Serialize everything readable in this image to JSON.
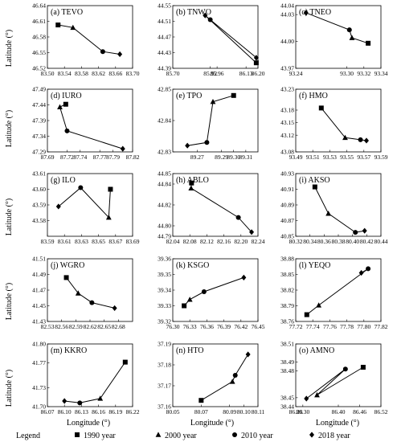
{
  "figure": {
    "ylabel": "Latitude (°)",
    "xlabel": "Longitude (°)"
  },
  "legend": {
    "title": "Legend",
    "items": [
      {
        "label": "1990 year",
        "marker": "square"
      },
      {
        "label": "2000 year",
        "marker": "triangle"
      },
      {
        "label": "2010 year",
        "marker": "circle"
      },
      {
        "label": "2018 year",
        "marker": "diamond"
      }
    ]
  },
  "chart_data": [
    {
      "type": "line",
      "title": "(a) TEVO",
      "xlim": [
        83.5,
        83.7
      ],
      "xticks": [
        "83.50",
        "83.54",
        "83.58",
        "83.62",
        "83.66",
        "83.70"
      ],
      "ylim": [
        46.52,
        46.64
      ],
      "yticks": [
        "46.52",
        "46.55",
        "46.58",
        "46.61",
        "46.64"
      ],
      "points": [
        [
          83.525,
          46.603,
          "square"
        ],
        [
          83.56,
          46.598,
          "triangle"
        ],
        [
          83.63,
          46.552,
          "circle"
        ],
        [
          83.67,
          46.547,
          "diamond"
        ]
      ]
    },
    {
      "type": "line",
      "title": "(b) TNWO",
      "xlim": [
        85.7,
        86.2
      ],
      "xticks": [
        "85.70",
        "85.92",
        "85.96",
        "86.13",
        "86.20"
      ],
      "xtickvals": [
        85.7,
        85.92,
        85.96,
        86.13,
        86.2
      ],
      "ylim": [
        44.39,
        44.55
      ],
      "yticks": [
        "44.39",
        "44.43",
        "44.47",
        "44.51",
        "44.55"
      ],
      "points": [
        [
          86.19,
          44.404,
          "square"
        ],
        [
          85.89,
          44.525,
          "diamond"
        ],
        [
          85.92,
          44.514,
          "circle"
        ],
        [
          86.19,
          44.417,
          "diamond"
        ]
      ]
    },
    {
      "type": "line",
      "title": "(c) TNEO",
      "xlim": [
        93.24,
        93.34
      ],
      "xticks": [
        "93.24",
        "93.30",
        "93.32",
        "93.34"
      ],
      "xtickvals": [
        93.24,
        93.3,
        93.32,
        93.34
      ],
      "ylim": [
        43.97,
        44.04
      ],
      "yticks": [
        "43.97",
        "44.00",
        "44.03",
        "44.04"
      ],
      "ytickvals": [
        43.97,
        44.0,
        44.03,
        44.04
      ],
      "points": [
        [
          93.325,
          43.998,
          "square"
        ],
        [
          93.306,
          44.004,
          "triangle"
        ],
        [
          93.303,
          44.013,
          "circle"
        ],
        [
          93.252,
          44.032,
          "diamond"
        ]
      ]
    },
    {
      "type": "line",
      "title": "(d) IURO",
      "xlim": [
        87.69,
        87.82
      ],
      "xticks": [
        "87.69",
        "87.72",
        "87.74",
        "87.77",
        "87.79",
        "87.82"
      ],
      "ylim": [
        47.29,
        47.49
      ],
      "yticks": [
        "47.29",
        "47.34",
        "47.39",
        "47.44",
        "47.49"
      ],
      "points": [
        [
          87.718,
          47.442,
          "square"
        ],
        [
          87.709,
          47.433,
          "triangle"
        ],
        [
          87.72,
          47.357,
          "circle"
        ],
        [
          87.805,
          47.3,
          "diamond"
        ]
      ]
    },
    {
      "type": "line",
      "title": "(e) TPO",
      "xlim": [
        89.25,
        89.32
      ],
      "xticks": [
        "89.27",
        "89.29",
        "89.30",
        "89.31"
      ],
      "xtickvals": [
        89.27,
        89.29,
        89.3,
        89.31
      ],
      "ylim": [
        42.83,
        42.85
      ],
      "yticks": [
        "42.83",
        "42.84",
        "42.85"
      ],
      "points": [
        [
          89.3,
          42.848,
          "square"
        ],
        [
          89.283,
          42.846,
          "triangle"
        ],
        [
          89.278,
          42.833,
          "circle"
        ],
        [
          89.262,
          42.832,
          "diamond"
        ]
      ]
    },
    {
      "type": "line",
      "title": "(f) HMO",
      "xlim": [
        93.49,
        93.59
      ],
      "xticks": [
        "93.49",
        "93.51",
        "93.53",
        "93.55",
        "93.57",
        "93.59"
      ],
      "ylim": [
        43.08,
        43.23
      ],
      "yticks": [
        "43.08",
        "43.12",
        "43.15",
        "43.18",
        "43.23"
      ],
      "ytickvals": [
        43.08,
        43.12,
        43.15,
        43.18,
        43.23
      ],
      "points": [
        [
          93.52,
          43.185,
          "square"
        ],
        [
          93.548,
          43.114,
          "triangle"
        ],
        [
          93.566,
          43.109,
          "circle"
        ],
        [
          93.573,
          43.107,
          "diamond"
        ]
      ]
    },
    {
      "type": "line",
      "title": "(g) ILO",
      "xlim": [
        83.59,
        83.69
      ],
      "xticks": [
        "83.59",
        "83.61",
        "83.63",
        "83.65",
        "83.67",
        "83.69"
      ],
      "ylim": [
        43.57,
        43.61
      ],
      "yticks": [
        "43.58",
        "43.59",
        "43.60",
        "43.61"
      ],
      "ytickvals": [
        43.58,
        43.59,
        43.6,
        43.61
      ],
      "points": [
        [
          83.664,
          43.6,
          "square"
        ],
        [
          83.662,
          43.582,
          "triangle"
        ],
        [
          83.629,
          43.601,
          "circle"
        ],
        [
          83.603,
          43.589,
          "diamond"
        ]
      ]
    },
    {
      "type": "line",
      "title": "(h) ABLO",
      "xlim": [
        82.04,
        82.24
      ],
      "xticks": [
        "82.04",
        "82.08",
        "82.12",
        "82.16",
        "82.20",
        "82.24"
      ],
      "ylim": [
        44.79,
        44.85
      ],
      "yticks": [
        "44.79",
        "44.80",
        "44.82",
        "44.84",
        "44.85"
      ],
      "ytickvals": [
        44.79,
        44.8,
        44.82,
        44.84,
        44.85
      ],
      "points": [
        [
          82.084,
          44.841,
          "square"
        ],
        [
          82.083,
          44.836,
          "triangle"
        ],
        [
          82.194,
          44.808,
          "circle"
        ],
        [
          82.225,
          44.794,
          "diamond"
        ]
      ]
    },
    {
      "type": "line",
      "title": "(i) AKSO",
      "xlim": [
        80.32,
        80.44
      ],
      "xticks": [
        "80.32",
        "80.34",
        "80.36",
        "80.38",
        "80.40",
        "80.42",
        "80.44"
      ],
      "ylim": [
        40.85,
        40.93
      ],
      "yticks": [
        "40.85",
        "40.87",
        "40.89",
        "40.91",
        "40.93"
      ],
      "points": [
        [
          80.347,
          40.913,
          "square"
        ],
        [
          80.366,
          40.879,
          "triangle"
        ],
        [
          80.404,
          40.855,
          "circle"
        ],
        [
          80.417,
          40.857,
          "diamond"
        ]
      ]
    },
    {
      "type": "line",
      "title": "(j) WGRO",
      "xlim": [
        82.53,
        82.71
      ],
      "xticks": [
        "82.53",
        "82.56",
        "82.59",
        "82.62",
        "82.65",
        "82.68"
      ],
      "ylim": [
        41.43,
        41.51
      ],
      "yticks": [
        "41.43",
        "41.45",
        "41.47",
        "41.49",
        "41.51"
      ],
      "points": [
        [
          82.57,
          41.486,
          "square"
        ],
        [
          82.595,
          41.466,
          "triangle"
        ],
        [
          82.624,
          41.454,
          "circle"
        ],
        [
          82.672,
          41.447,
          "diamond"
        ]
      ]
    },
    {
      "type": "line",
      "title": "(k) KSGO",
      "xlim": [
        76.3,
        76.45
      ],
      "xticks": [
        "76.30",
        "76.33",
        "76.36",
        "76.39",
        "76.42",
        "76.45"
      ],
      "ylim": [
        39.32,
        39.36
      ],
      "yticks": [
        "39.32",
        "39.33",
        "39.34",
        "39.35",
        "39.36"
      ],
      "ytickvals": [
        39.32,
        39.33,
        39.34,
        39.35,
        39.36
      ],
      "points": [
        [
          76.32,
          39.33,
          "square"
        ],
        [
          76.33,
          39.334,
          "triangle"
        ],
        [
          76.355,
          39.339,
          "circle"
        ],
        [
          76.425,
          39.348,
          "diamond"
        ]
      ]
    },
    {
      "type": "line",
      "title": "(l) YEQO",
      "xlim": [
        77.72,
        77.82
      ],
      "xticks": [
        "77.72",
        "77.74",
        "77.76",
        "77.78",
        "77.80",
        "77.82"
      ],
      "ylim": [
        38.76,
        38.88
      ],
      "yticks": [
        "38.76",
        "38.79",
        "38.82",
        "38.85",
        "38.88"
      ],
      "points": [
        [
          77.733,
          38.773,
          "square"
        ],
        [
          77.747,
          38.791,
          "triangle"
        ],
        [
          77.805,
          38.861,
          "circle"
        ],
        [
          77.797,
          38.853,
          "diamond"
        ]
      ]
    },
    {
      "type": "line",
      "title": "(m) KKRO",
      "xlim": [
        86.07,
        86.22
      ],
      "xticks": [
        "86.07",
        "86.10",
        "86.13",
        "86.16",
        "86.19",
        "86.22"
      ],
      "ylim": [
        41.7,
        41.8
      ],
      "yticks": [
        "41.70",
        "41.73",
        "41.77",
        "41.80"
      ],
      "ytickvals": [
        41.7,
        41.73,
        41.77,
        41.8
      ],
      "points": [
        [
          86.207,
          41.771,
          "square"
        ],
        [
          86.163,
          41.713,
          "triangle"
        ],
        [
          86.127,
          41.706,
          "circle"
        ],
        [
          86.1,
          41.709,
          "diamond"
        ]
      ]
    },
    {
      "type": "line",
      "title": "(n) HTO",
      "xlim": [
        80.05,
        80.11
      ],
      "xticks": [
        "80.05",
        "80.07",
        "80.09",
        "80.10",
        "80.11"
      ],
      "xtickvals": [
        80.05,
        80.07,
        80.09,
        80.1,
        80.11
      ],
      "ylim": [
        37.16,
        37.19
      ],
      "yticks": [
        "37.16",
        "37.17",
        "37.18",
        "37.19"
      ],
      "points": [
        [
          80.07,
          37.163,
          "square"
        ],
        [
          80.092,
          37.172,
          "triangle"
        ],
        [
          80.094,
          37.175,
          "circle"
        ],
        [
          80.103,
          37.185,
          "diamond"
        ]
      ]
    },
    {
      "type": "line",
      "title": "(o) AMNO",
      "xlim": [
        86.28,
        86.52
      ],
      "xticks": [
        "86.28",
        "86.30",
        "86.40",
        "86.46",
        "86.52"
      ],
      "xtickvals": [
        86.28,
        86.3,
        86.4,
        86.46,
        86.52
      ],
      "ylim": [
        38.44,
        38.51
      ],
      "yticks": [
        "38.44",
        "38.45",
        "38.48",
        "38.49",
        "38.51"
      ],
      "ytickvals": [
        38.44,
        38.45,
        38.48,
        38.49,
        38.51
      ],
      "points": [
        [
          86.47,
          38.484,
          "square"
        ],
        [
          86.34,
          38.453,
          "triangle"
        ],
        [
          86.42,
          38.482,
          "circle"
        ],
        [
          86.31,
          38.449,
          "diamond"
        ]
      ]
    }
  ]
}
